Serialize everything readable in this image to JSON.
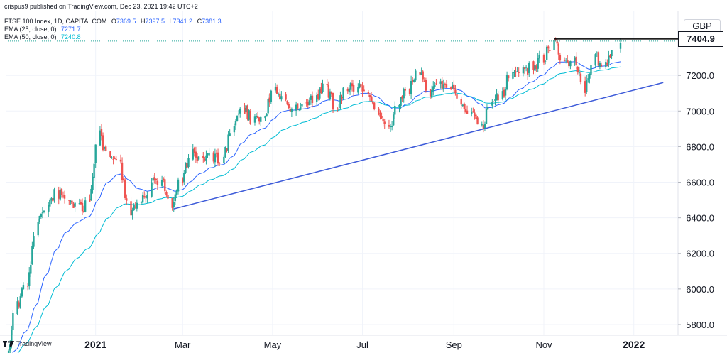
{
  "publisher": "crispus9 published on TradingView.com, Dec 23, 2021 19:42 UTC+2",
  "legend": {
    "symbol": "FTSE 100 Index, 1D, CAPITALCOM",
    "o_label": "O",
    "o": "7369.5",
    "h_label": "H",
    "h": "7397.5",
    "l_label": "L",
    "l": "7341.2",
    "c_label": "C",
    "c": "7381.3",
    "ema25_label": "EMA (25, close, 0)",
    "ema25": "7271.7",
    "ema50_label": "EMA (50, close, 0)",
    "ema50": "7240.8"
  },
  "currency": "GBP",
  "last_price_label": "7404.9",
  "footer_brand": "TradingView",
  "colors": {
    "up": "#26a69a",
    "down": "#ef5350",
    "ema25": "#2962ff",
    "ema50": "#00bcd4",
    "trendline": "#3d5bd9",
    "level": "#000000"
  },
  "chart_data": {
    "type": "candlestick",
    "symbol": "FTSE 100 Index",
    "interval": "1D",
    "y_tick_labels": [
      "7200.0",
      "7000.0",
      "6800.0",
      "6600.0",
      "6400.0",
      "6200.0",
      "6000.0",
      "5800.0"
    ],
    "y_ticks": [
      7200,
      7000,
      6800,
      6600,
      6400,
      6200,
      6000,
      5800
    ],
    "ylim": [
      5740,
      7560
    ],
    "x_tick_labels": [
      "2021",
      "Mar",
      "May",
      "Jul",
      "Sep",
      "Nov",
      "2022"
    ],
    "x_ticks": [
      "2021-01-01",
      "2021-03-01",
      "2021-05-01",
      "2021-07-01",
      "2021-09-01",
      "2021-11-01",
      "2022-01-01"
    ],
    "xlim": [
      "2020-11-01",
      "2022-01-31"
    ],
    "last_price": 7404.9,
    "ema25_last": 7271.7,
    "ema50_last": 7240.8,
    "resistance_level": {
      "value": 7404.9,
      "from": "2021-11-08",
      "to": "2022-01-31"
    },
    "trendline": {
      "from": {
        "date": "2021-02-23",
        "value": 6450
      },
      "to": {
        "date": "2022-01-21",
        "value": 7160
      }
    },
    "close_path": [
      [
        "2020-11-02",
        5580
      ],
      [
        "2020-11-09",
        5900
      ],
      [
        "2020-11-16",
        6020
      ],
      [
        "2020-11-23",
        6380
      ],
      [
        "2020-11-30",
        6480
      ],
      [
        "2020-12-07",
        6540
      ],
      [
        "2020-12-14",
        6520
      ],
      [
        "2020-12-21",
        6460
      ],
      [
        "2020-12-28",
        6470
      ],
      [
        "2021-01-04",
        6860
      ],
      [
        "2021-01-11",
        6740
      ],
      [
        "2021-01-18",
        6700
      ],
      [
        "2021-01-25",
        6410
      ],
      [
        "2021-02-01",
        6490
      ],
      [
        "2021-02-08",
        6580
      ],
      [
        "2021-02-15",
        6620
      ],
      [
        "2021-02-22",
        6490
      ],
      [
        "2021-03-01",
        6620
      ],
      [
        "2021-03-08",
        6760
      ],
      [
        "2021-03-15",
        6710
      ],
      [
        "2021-03-22",
        6740
      ],
      [
        "2021-03-29",
        6730
      ],
      [
        "2021-04-05",
        6910
      ],
      [
        "2021-04-12",
        7020
      ],
      [
        "2021-04-19",
        6940
      ],
      [
        "2021-04-26",
        6990
      ],
      [
        "2021-05-03",
        7120
      ],
      [
        "2021-05-10",
        7040
      ],
      [
        "2021-05-17",
        7020
      ],
      [
        "2021-05-24",
        7030
      ],
      [
        "2021-05-31",
        7080
      ],
      [
        "2021-06-07",
        7130
      ],
      [
        "2021-06-14",
        7020
      ],
      [
        "2021-06-21",
        7140
      ],
      [
        "2021-06-28",
        7120
      ],
      [
        "2021-07-05",
        7130
      ],
      [
        "2021-07-12",
        7010
      ],
      [
        "2021-07-19",
        6890
      ],
      [
        "2021-07-26",
        7040
      ],
      [
        "2021-08-02",
        7120
      ],
      [
        "2021-08-09",
        7220
      ],
      [
        "2021-08-16",
        7090
      ],
      [
        "2021-08-23",
        7150
      ],
      [
        "2021-08-30",
        7140
      ],
      [
        "2021-09-06",
        7020
      ],
      [
        "2021-09-13",
        6980
      ],
      [
        "2021-09-20",
        6900
      ],
      [
        "2021-09-27",
        7050
      ],
      [
        "2021-10-04",
        7080
      ],
      [
        "2021-10-11",
        7230
      ],
      [
        "2021-10-18",
        7220
      ],
      [
        "2021-10-25",
        7250
      ],
      [
        "2021-11-01",
        7300
      ],
      [
        "2021-11-08",
        7380
      ],
      [
        "2021-11-15",
        7290
      ],
      [
        "2021-11-22",
        7280
      ],
      [
        "2021-11-29",
        7120
      ],
      [
        "2021-12-06",
        7300
      ],
      [
        "2021-12-13",
        7270
      ],
      [
        "2021-12-20",
        7381
      ]
    ]
  }
}
